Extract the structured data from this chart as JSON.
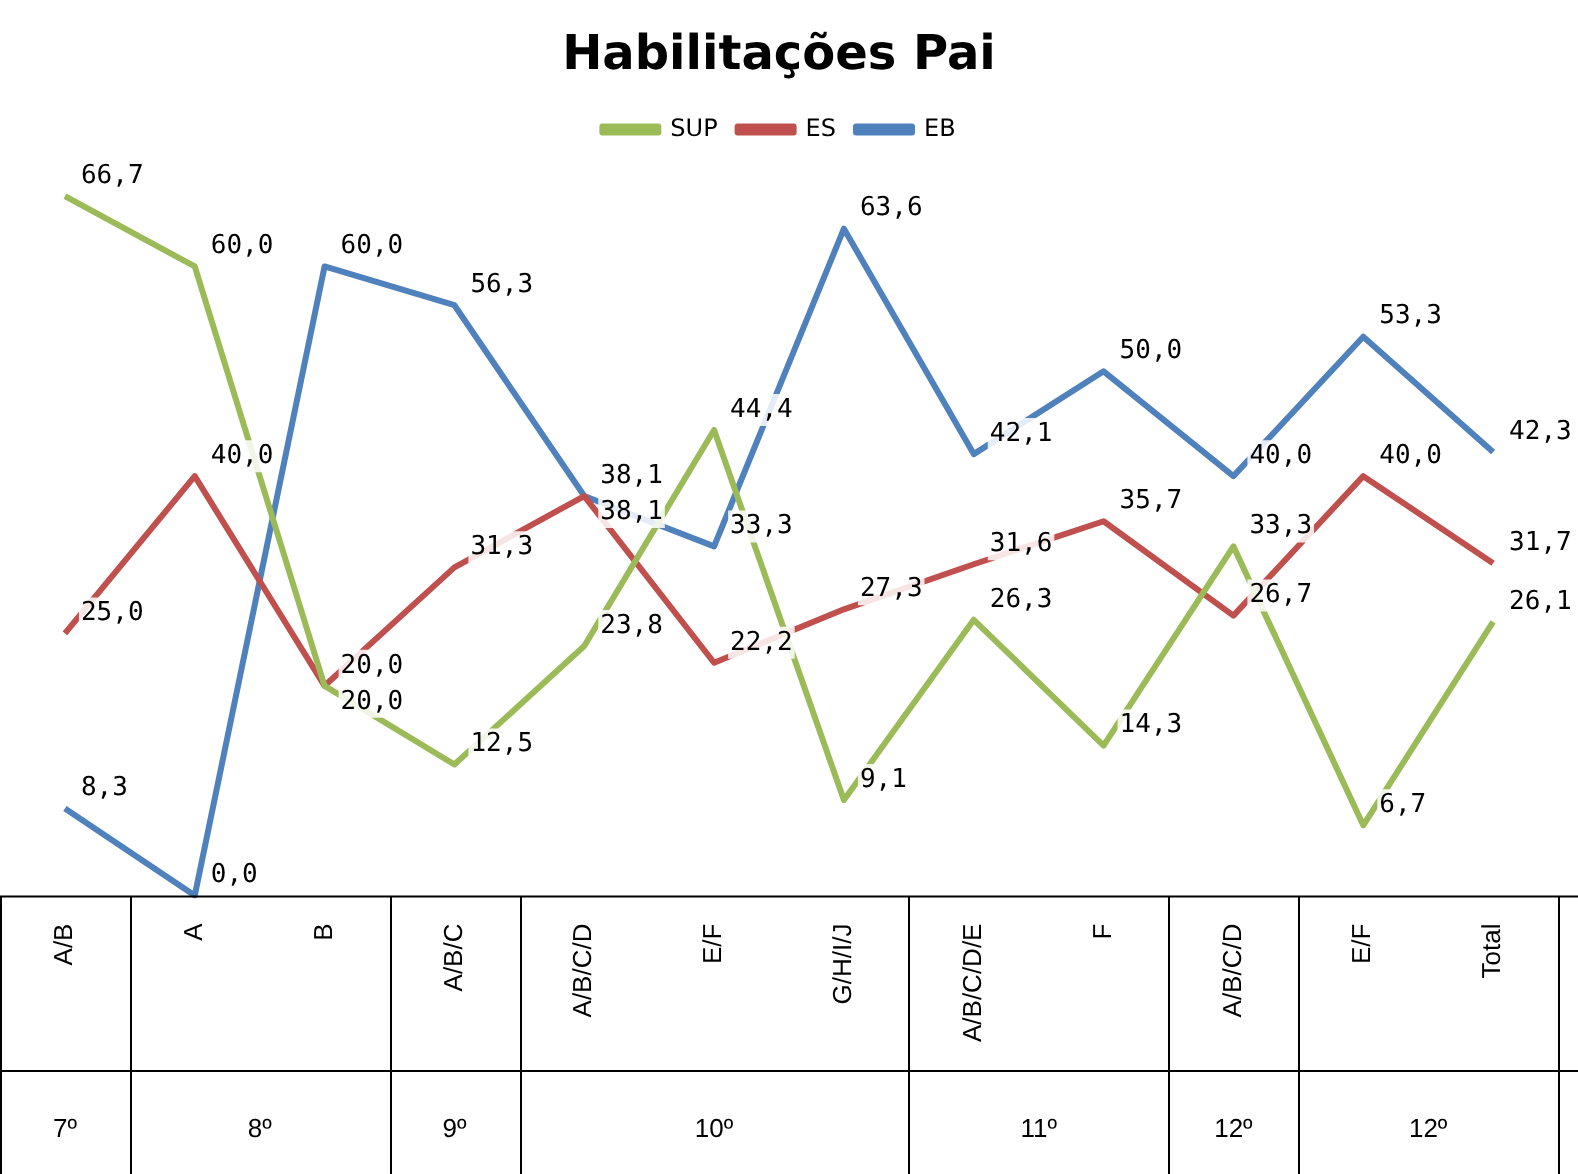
{
  "chart_data": {
    "type": "line",
    "title": "Habilitações Pai",
    "categories": [
      "A/B",
      "A",
      "B",
      "A/B/C",
      "A/B/C/D",
      "E/F",
      "G/H/I/J",
      "A/B/C/D/E",
      "F",
      "A/B/C/D",
      "E/F",
      "Total"
    ],
    "series": [
      {
        "name": "SUP",
        "color": "#9bbb59",
        "values": [
          66.7,
          60.0,
          20.0,
          12.5,
          23.8,
          44.4,
          9.1,
          26.3,
          14.3,
          33.3,
          6.7,
          26.1
        ],
        "value_labels": [
          "66,7",
          "60,0",
          "20,0",
          "12,5",
          "23,8",
          "44,4",
          "9,1",
          "26,3",
          "14,3",
          "33,3",
          "6,7",
          "26,1"
        ]
      },
      {
        "name": "ES",
        "color": "#c0504d",
        "values": [
          25.0,
          40.0,
          20.0,
          31.3,
          38.1,
          22.2,
          27.3,
          31.6,
          35.7,
          26.7,
          40.0,
          31.7
        ],
        "value_labels": [
          "25,0",
          "40,0",
          "20,0",
          "31,3",
          "38,1",
          "22,2",
          "27,3",
          "31,6",
          "35,7",
          "26,7",
          "40,0",
          "31,7"
        ]
      },
      {
        "name": "EB",
        "color": "#4f81bd",
        "values": [
          8.3,
          0.0,
          60.0,
          56.3,
          38.1,
          33.3,
          63.6,
          42.1,
          50.0,
          40.0,
          53.3,
          42.3
        ],
        "value_labels": [
          "8,3",
          "0,0",
          "60,0",
          "56,3",
          "38,1",
          "33,3",
          "63,6",
          "42,1",
          "50,0",
          "40,0",
          "53,3",
          "42,3"
        ]
      }
    ],
    "annotations": [
      "7º",
      "8º",
      "9º",
      "10º",
      "11º",
      "12º",
      "12º"
    ],
    "legend": "top",
    "grid": false,
    "marker": "none",
    "line_style": "solid",
    "tick_labels": "x"
  }
}
